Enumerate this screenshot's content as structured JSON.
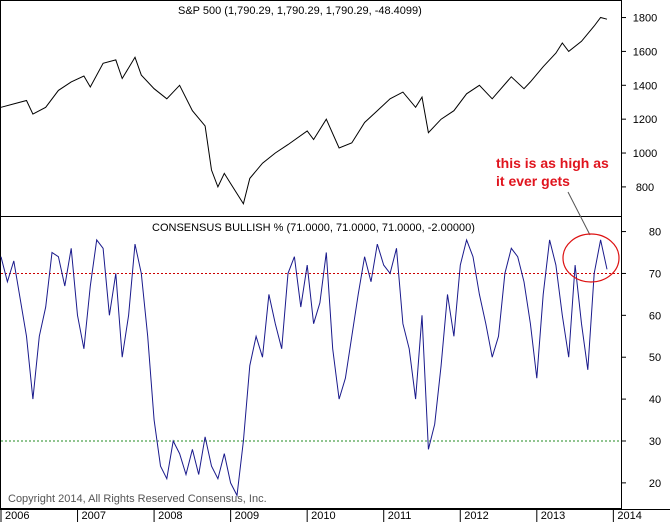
{
  "chart_data": [
    {
      "type": "line",
      "title": "S&P 500 (1,790.29, 1,790.29, 1,790.29, -48.4099)",
      "ylim": [
        640,
        1880
      ],
      "yticks": [
        800,
        1000,
        1200,
        1400,
        1600,
        1800
      ],
      "line_color": "#000000",
      "series": [
        {
          "x": [
            "2006-01",
            "2006-03",
            "2006-05",
            "2006-06",
            "2006-08",
            "2006-10",
            "2006-12",
            "2007-02",
            "2007-03",
            "2007-05",
            "2007-07",
            "2007-08",
            "2007-10",
            "2007-11",
            "2008-01",
            "2008-03",
            "2008-05",
            "2008-07",
            "2008-09",
            "2008-10",
            "2008-11",
            "2008-12",
            "2009-01",
            "2009-03",
            "2009-04",
            "2009-06",
            "2009-08",
            "2009-10",
            "2010-01",
            "2010-02",
            "2010-04",
            "2010-06",
            "2010-08",
            "2010-10",
            "2010-12",
            "2011-02",
            "2011-04",
            "2011-06",
            "2011-07",
            "2011-08",
            "2011-10",
            "2011-12",
            "2012-02",
            "2012-04",
            "2012-06",
            "2012-09",
            "2012-11",
            "2012-12",
            "2013-02",
            "2013-04",
            "2013-05",
            "2013-06",
            "2013-08",
            "2013-10",
            "2013-11",
            "2013-12"
          ],
          "values": [
            1270,
            1290,
            1310,
            1230,
            1270,
            1370,
            1420,
            1455,
            1390,
            1530,
            1550,
            1440,
            1565,
            1460,
            1380,
            1320,
            1400,
            1250,
            1160,
            900,
            800,
            880,
            820,
            700,
            850,
            940,
            1000,
            1050,
            1130,
            1080,
            1200,
            1030,
            1060,
            1180,
            1250,
            1320,
            1360,
            1270,
            1330,
            1120,
            1200,
            1250,
            1350,
            1400,
            1320,
            1450,
            1380,
            1420,
            1510,
            1590,
            1650,
            1600,
            1660,
            1750,
            1800,
            1790
          ]
        }
      ]
    },
    {
      "type": "line",
      "title": "CONSENSUS BULLISH % (71.0000, 71.0000, 71.0000, -2.00000)",
      "ylim": [
        14,
        83
      ],
      "yticks": [
        20,
        30,
        40,
        50,
        60,
        70,
        80
      ],
      "x_tick_labels": [
        "2006",
        "2007",
        "2008",
        "2009",
        "2010",
        "2011",
        "2012",
        "2013",
        "2014"
      ],
      "line_color": "#1a1a8c",
      "reference_lines": [
        {
          "value": 70,
          "color": "#cc0000",
          "style": "dotted"
        },
        {
          "value": 30,
          "color": "#228b22",
          "style": "dotted"
        }
      ],
      "series": [
        {
          "x": [
            "2006-01",
            "2006-02",
            "2006-03",
            "2006-05",
            "2006-06",
            "2006-07",
            "2006-08",
            "2006-09",
            "2006-10",
            "2006-11",
            "2006-12",
            "2007-01",
            "2007-02",
            "2007-03",
            "2007-04",
            "2007-05",
            "2007-06",
            "2007-07",
            "2007-08",
            "2007-09",
            "2007-10",
            "2007-11",
            "2007-12",
            "2008-01",
            "2008-02",
            "2008-03",
            "2008-04",
            "2008-05",
            "2008-06",
            "2008-07",
            "2008-08",
            "2008-09",
            "2008-10",
            "2008-11",
            "2008-12",
            "2009-01",
            "2009-02",
            "2009-03",
            "2009-04",
            "2009-05",
            "2009-06",
            "2009-07",
            "2009-08",
            "2009-09",
            "2009-10",
            "2009-11",
            "2009-12",
            "2010-01",
            "2010-02",
            "2010-03",
            "2010-04",
            "2010-05",
            "2010-06",
            "2010-07",
            "2010-08",
            "2010-09",
            "2010-10",
            "2010-11",
            "2010-12",
            "2011-01",
            "2011-02",
            "2011-03",
            "2011-04",
            "2011-05",
            "2011-06",
            "2011-07",
            "2011-08",
            "2011-09",
            "2011-10",
            "2011-11",
            "2011-12",
            "2012-01",
            "2012-02",
            "2012-03",
            "2012-04",
            "2012-05",
            "2012-06",
            "2012-07",
            "2012-08",
            "2012-09",
            "2012-10",
            "2012-11",
            "2012-12",
            "2013-01",
            "2013-02",
            "2013-03",
            "2013-04",
            "2013-05",
            "2013-06",
            "2013-07",
            "2013-08",
            "2013-09",
            "2013-10",
            "2013-11",
            "2013-12"
          ],
          "values": [
            74,
            68,
            73,
            55,
            40,
            55,
            62,
            75,
            74,
            67,
            76,
            60,
            52,
            67,
            78,
            76,
            60,
            70,
            50,
            60,
            77,
            70,
            55,
            35,
            24,
            21,
            30,
            27,
            22,
            28,
            22,
            31,
            24,
            21,
            27,
            20,
            17,
            30,
            48,
            55,
            50,
            65,
            58,
            52,
            70,
            74,
            62,
            72,
            58,
            63,
            75,
            52,
            40,
            45,
            55,
            65,
            74,
            68,
            77,
            72,
            70,
            76,
            58,
            52,
            40,
            60,
            28,
            34,
            48,
            65,
            55,
            72,
            78,
            74,
            65,
            58,
            50,
            55,
            70,
            76,
            74,
            68,
            58,
            45,
            65,
            78,
            72,
            60,
            50,
            72,
            58,
            47,
            70,
            78,
            71
          ]
        }
      ],
      "annotation": "this is as high as it ever gets",
      "copyright": "Copyright 2014, All Rights Reserved  Consensus, Inc."
    }
  ]
}
